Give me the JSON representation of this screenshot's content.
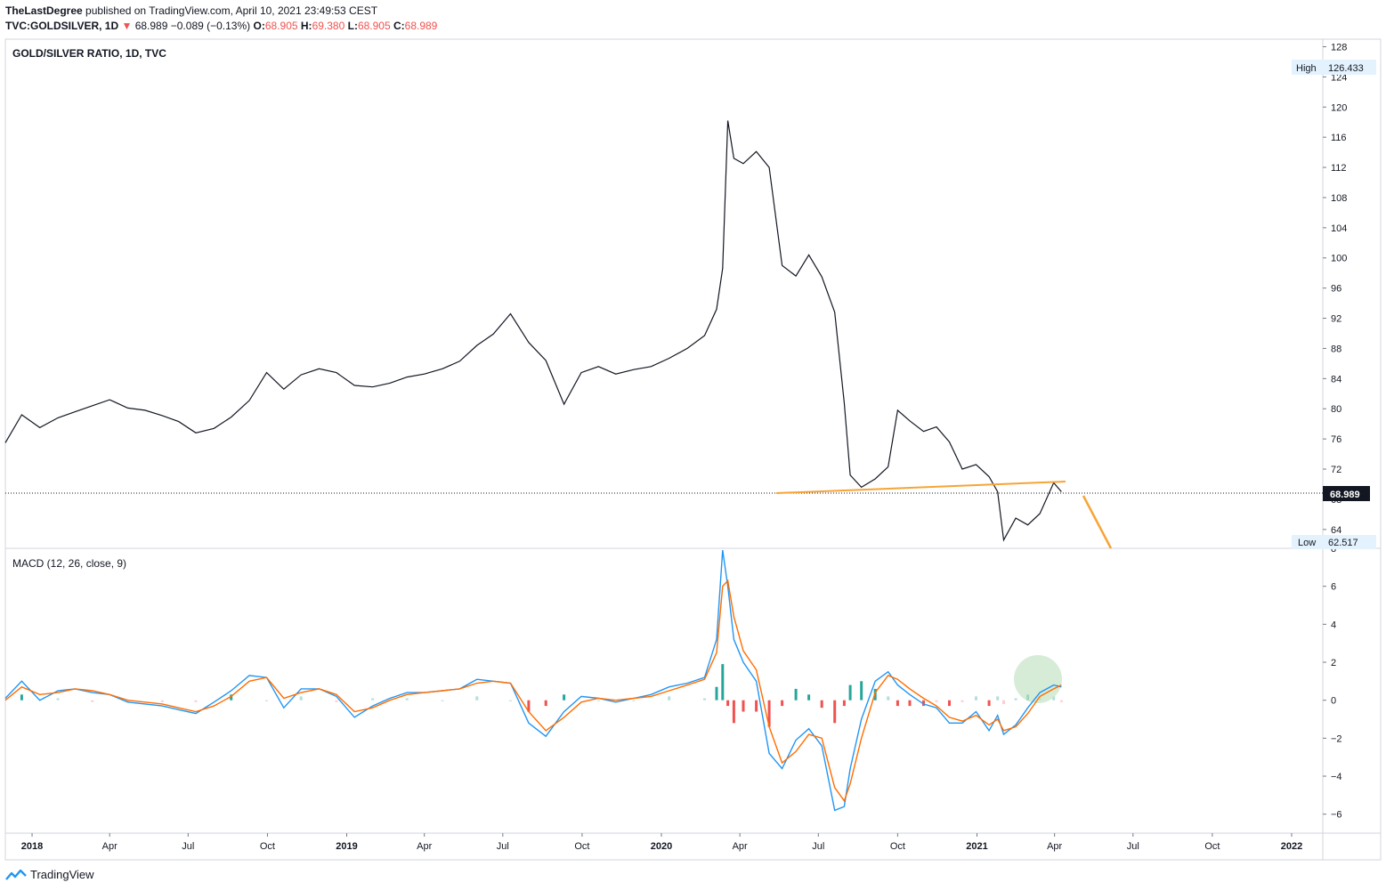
{
  "header": {
    "author": "TheLastDegree",
    "published_text": "published on TradingView.com, April 10, 2021 23:49:53 CEST",
    "symbol": "TVC:GOLDSILVER, 1D",
    "price": "68.989",
    "change": "−0.089 (−0.13%)",
    "open_label": "O:",
    "open": "68.905",
    "high_label": "H:",
    "high": "69.380",
    "low_label": "L:",
    "low": "68.905",
    "close_label": "C:",
    "close": "68.989"
  },
  "footer": {
    "brand": "TradingView"
  },
  "colors": {
    "price_line": "#131722",
    "macd_line": "#2196f3",
    "signal_line": "#ff6d00",
    "hist_pos_strong": "#26a69a",
    "hist_pos_weak": "#b2dfdb",
    "hist_neg_strong": "#ef5350",
    "hist_neg_weak": "#ffcdd2",
    "trend_line": "#f7a436",
    "highlight_circle": "#c8e6c9"
  },
  "chart_data": [
    {
      "type": "line",
      "title": "GOLD/SILVER RATIO, 1D, TVC",
      "x_tick_labels": [
        "2018",
        "Apr",
        "Jul",
        "Oct",
        "2019",
        "Apr",
        "Jul",
        "Oct",
        "2020",
        "Apr",
        "Jul",
        "Oct",
        "2021",
        "Apr",
        "Jul",
        "Oct",
        "2022"
      ],
      "ylim": [
        61.5,
        129
      ],
      "y_ticks": [
        64,
        68,
        72,
        76,
        80,
        84,
        88,
        92,
        96,
        100,
        104,
        108,
        112,
        116,
        120,
        124,
        128
      ],
      "high_label": "High",
      "high_value": "126.433",
      "low_label": "Low",
      "low_value": "62.517",
      "last_value": "68.989",
      "grid": false,
      "series": [
        {
          "x": [
            "2017-12-01",
            "2017-12-20",
            "2018-01-10",
            "2018-01-31",
            "2018-02-20",
            "2018-03-12",
            "2018-04-01",
            "2018-04-22",
            "2018-05-12",
            "2018-06-01",
            "2018-06-20",
            "2018-07-10",
            "2018-07-31",
            "2018-08-20",
            "2018-09-10",
            "2018-09-30",
            "2018-10-20",
            "2018-11-09",
            "2018-11-30",
            "2018-12-20",
            "2019-01-10",
            "2019-01-31",
            "2019-02-20",
            "2019-03-12",
            "2019-04-01",
            "2019-04-22",
            "2019-05-12",
            "2019-06-01",
            "2019-06-20",
            "2019-07-10",
            "2019-07-31",
            "2019-08-20",
            "2019-09-10",
            "2019-09-30",
            "2019-10-20",
            "2019-11-09",
            "2019-11-30",
            "2019-12-20",
            "2020-01-10",
            "2020-01-31",
            "2020-02-20",
            "2020-03-05",
            "2020-03-12",
            "2020-03-18",
            "2020-03-25",
            "2020-04-05",
            "2020-04-20",
            "2020-05-05",
            "2020-05-20",
            "2020-06-05",
            "2020-06-20",
            "2020-07-05",
            "2020-07-20",
            "2020-07-31",
            "2020-08-07",
            "2020-08-20",
            "2020-09-05",
            "2020-09-20",
            "2020-10-01",
            "2020-10-15",
            "2020-10-31",
            "2020-11-15",
            "2020-11-30",
            "2020-12-15",
            "2020-12-31",
            "2021-01-15",
            "2021-01-25",
            "2021-02-01",
            "2021-02-15",
            "2021-03-01",
            "2021-03-15",
            "2021-03-31",
            "2021-04-09"
          ],
          "values": [
            75.5,
            79.2,
            77.5,
            78.8,
            79.6,
            80.4,
            81.2,
            80.1,
            79.8,
            79.1,
            78.3,
            76.8,
            77.4,
            78.9,
            81.1,
            84.8,
            82.6,
            84.5,
            85.3,
            84.8,
            83.1,
            82.9,
            83.4,
            84.2,
            84.6,
            85.3,
            86.3,
            88.4,
            89.9,
            92.6,
            88.8,
            86.4,
            80.6,
            84.8,
            85.6,
            84.6,
            85.2,
            85.6,
            86.7,
            88.0,
            89.7,
            93.2,
            98.6,
            118.2,
            113.2,
            112.5,
            114.1,
            112.0,
            99.0,
            97.6,
            100.4,
            97.5,
            92.8,
            80.8,
            71.2,
            69.6,
            70.7,
            72.3,
            79.8,
            78.4,
            77.0,
            77.6,
            75.6,
            72.0,
            72.6,
            71.0,
            69.0,
            62.6,
            65.5,
            64.6,
            66.1,
            70.2,
            68.989
          ]
        }
      ]
    },
    {
      "type": "line",
      "title": "MACD (12, 26, close, 9)",
      "ylim": [
        -7,
        8
      ],
      "y_ticks": [
        -6,
        -4,
        -2,
        0,
        2,
        4,
        6,
        8
      ],
      "grid": false,
      "series": [
        {
          "x": [
            "2017-12-01",
            "2017-12-20",
            "2018-01-10",
            "2018-01-31",
            "2018-02-20",
            "2018-03-12",
            "2018-04-01",
            "2018-04-22",
            "2018-05-12",
            "2018-06-01",
            "2018-06-20",
            "2018-07-10",
            "2018-07-31",
            "2018-08-20",
            "2018-09-10",
            "2018-09-30",
            "2018-10-20",
            "2018-11-09",
            "2018-11-30",
            "2018-12-20",
            "2019-01-10",
            "2019-01-31",
            "2019-02-20",
            "2019-03-12",
            "2019-04-01",
            "2019-04-22",
            "2019-05-12",
            "2019-06-01",
            "2019-06-20",
            "2019-07-10",
            "2019-07-31",
            "2019-08-20",
            "2019-09-10",
            "2019-09-30",
            "2019-10-20",
            "2019-11-09",
            "2019-11-30",
            "2019-12-20",
            "2020-01-10",
            "2020-01-31",
            "2020-02-20",
            "2020-03-05",
            "2020-03-12",
            "2020-03-18",
            "2020-03-25",
            "2020-04-05",
            "2020-04-20",
            "2020-05-05",
            "2020-05-20",
            "2020-06-05",
            "2020-06-20",
            "2020-07-05",
            "2020-07-20",
            "2020-07-31",
            "2020-08-07",
            "2020-08-20",
            "2020-09-05",
            "2020-09-20",
            "2020-10-01",
            "2020-10-15",
            "2020-10-31",
            "2020-11-15",
            "2020-11-30",
            "2020-12-15",
            "2020-12-31",
            "2021-01-15",
            "2021-01-25",
            "2021-02-01",
            "2021-02-15",
            "2021-03-01",
            "2021-03-15",
            "2021-03-31",
            "2021-04-09"
          ],
          "values": [
            0.1,
            1.0,
            0.0,
            0.5,
            0.6,
            0.4,
            0.3,
            -0.1,
            -0.2,
            -0.3,
            -0.5,
            -0.7,
            -0.1,
            0.5,
            1.3,
            1.2,
            -0.4,
            0.6,
            0.6,
            0.2,
            -0.9,
            -0.3,
            0.1,
            0.4,
            0.4,
            0.5,
            0.6,
            1.1,
            1.0,
            0.9,
            -1.2,
            -1.9,
            -0.6,
            0.2,
            0.1,
            -0.1,
            0.1,
            0.3,
            0.7,
            0.9,
            1.2,
            3.2,
            7.9,
            6.0,
            3.2,
            2.0,
            1.0,
            -2.8,
            -3.6,
            -2.1,
            -1.5,
            -2.4,
            -5.8,
            -5.6,
            -3.6,
            -1.0,
            1.0,
            1.5,
            0.8,
            0.3,
            -0.2,
            -0.4,
            -1.2,
            -1.2,
            -0.6,
            -1.6,
            -0.8,
            -1.8,
            -1.3,
            -0.4,
            0.4,
            0.8,
            0.7
          ]
        },
        {
          "x": [
            "2017-12-01",
            "2017-12-20",
            "2018-01-10",
            "2018-01-31",
            "2018-02-20",
            "2018-03-12",
            "2018-04-01",
            "2018-04-22",
            "2018-05-12",
            "2018-06-01",
            "2018-06-20",
            "2018-07-10",
            "2018-07-31",
            "2018-08-20",
            "2018-09-10",
            "2018-09-30",
            "2018-10-20",
            "2018-11-09",
            "2018-11-30",
            "2018-12-20",
            "2019-01-10",
            "2019-01-31",
            "2019-02-20",
            "2019-03-12",
            "2019-04-01",
            "2019-04-22",
            "2019-05-12",
            "2019-06-01",
            "2019-06-20",
            "2019-07-10",
            "2019-07-31",
            "2019-08-20",
            "2019-09-10",
            "2019-09-30",
            "2019-10-20",
            "2019-11-09",
            "2019-11-30",
            "2019-12-20",
            "2020-01-10",
            "2020-01-31",
            "2020-02-20",
            "2020-03-05",
            "2020-03-12",
            "2020-03-18",
            "2020-03-25",
            "2020-04-05",
            "2020-04-20",
            "2020-05-05",
            "2020-05-20",
            "2020-06-05",
            "2020-06-20",
            "2020-07-05",
            "2020-07-20",
            "2020-07-31",
            "2020-08-07",
            "2020-08-20",
            "2020-09-05",
            "2020-09-20",
            "2020-10-01",
            "2020-10-15",
            "2020-10-31",
            "2020-11-15",
            "2020-11-30",
            "2020-12-15",
            "2020-12-31",
            "2021-01-15",
            "2021-01-25",
            "2021-02-01",
            "2021-02-15",
            "2021-03-01",
            "2021-03-15",
            "2021-03-31",
            "2021-04-09"
          ],
          "values": [
            0.0,
            0.7,
            0.3,
            0.4,
            0.6,
            0.5,
            0.3,
            0.0,
            -0.1,
            -0.2,
            -0.4,
            -0.6,
            -0.3,
            0.2,
            1.0,
            1.2,
            0.1,
            0.4,
            0.6,
            0.3,
            -0.6,
            -0.4,
            0.0,
            0.3,
            0.4,
            0.5,
            0.6,
            0.9,
            1.0,
            0.9,
            -0.6,
            -1.6,
            -0.9,
            -0.1,
            0.1,
            0.0,
            0.1,
            0.2,
            0.5,
            0.8,
            1.1,
            2.5,
            6.0,
            6.3,
            4.4,
            2.6,
            1.6,
            -1.4,
            -3.3,
            -2.7,
            -1.8,
            -2.0,
            -4.6,
            -5.3,
            -4.4,
            -2.0,
            0.4,
            1.3,
            1.1,
            0.6,
            0.1,
            -0.3,
            -0.9,
            -1.1,
            -0.8,
            -1.3,
            -1.0,
            -1.6,
            -1.4,
            -0.7,
            0.2,
            0.6,
            0.8
          ]
        }
      ],
      "histogram": {
        "x": [
          "2017-12-20",
          "2018-01-31",
          "2018-03-12",
          "2018-04-22",
          "2018-06-01",
          "2018-07-10",
          "2018-08-20",
          "2018-09-30",
          "2018-11-09",
          "2018-12-20",
          "2019-01-31",
          "2019-03-12",
          "2019-04-22",
          "2019-06-01",
          "2019-07-10",
          "2019-07-31",
          "2019-08-20",
          "2019-09-10",
          "2019-10-20",
          "2019-11-30",
          "2020-01-10",
          "2020-02-20",
          "2020-03-05",
          "2020-03-12",
          "2020-03-18",
          "2020-03-25",
          "2020-04-05",
          "2020-04-20",
          "2020-05-05",
          "2020-05-20",
          "2020-06-05",
          "2020-06-20",
          "2020-07-05",
          "2020-07-20",
          "2020-07-31",
          "2020-08-07",
          "2020-08-20",
          "2020-09-05",
          "2020-09-20",
          "2020-10-01",
          "2020-10-15",
          "2020-10-31",
          "2020-11-15",
          "2020-11-30",
          "2020-12-15",
          "2020-12-31",
          "2021-01-15",
          "2021-01-25",
          "2021-02-01",
          "2021-02-15",
          "2021-03-01",
          "2021-03-15",
          "2021-03-31",
          "2021-04-09"
        ],
        "values": [
          0.3,
          0.1,
          -0.1,
          -0.1,
          -0.1,
          -0.1,
          0.3,
          0.0,
          0.2,
          -0.1,
          0.1,
          0.1,
          0.0,
          0.2,
          0.0,
          -0.6,
          -0.3,
          0.3,
          0.0,
          0.0,
          0.2,
          0.1,
          0.7,
          1.9,
          -0.3,
          -1.2,
          -0.6,
          -0.6,
          -1.4,
          -0.3,
          0.6,
          0.3,
          -0.4,
          -1.2,
          -0.3,
          0.8,
          1.0,
          0.6,
          0.2,
          -0.3,
          -0.3,
          -0.3,
          -0.1,
          -0.3,
          -0.1,
          0.2,
          -0.3,
          0.2,
          -0.2,
          0.1,
          0.3,
          0.2,
          0.2,
          -0.1
        ]
      }
    }
  ]
}
